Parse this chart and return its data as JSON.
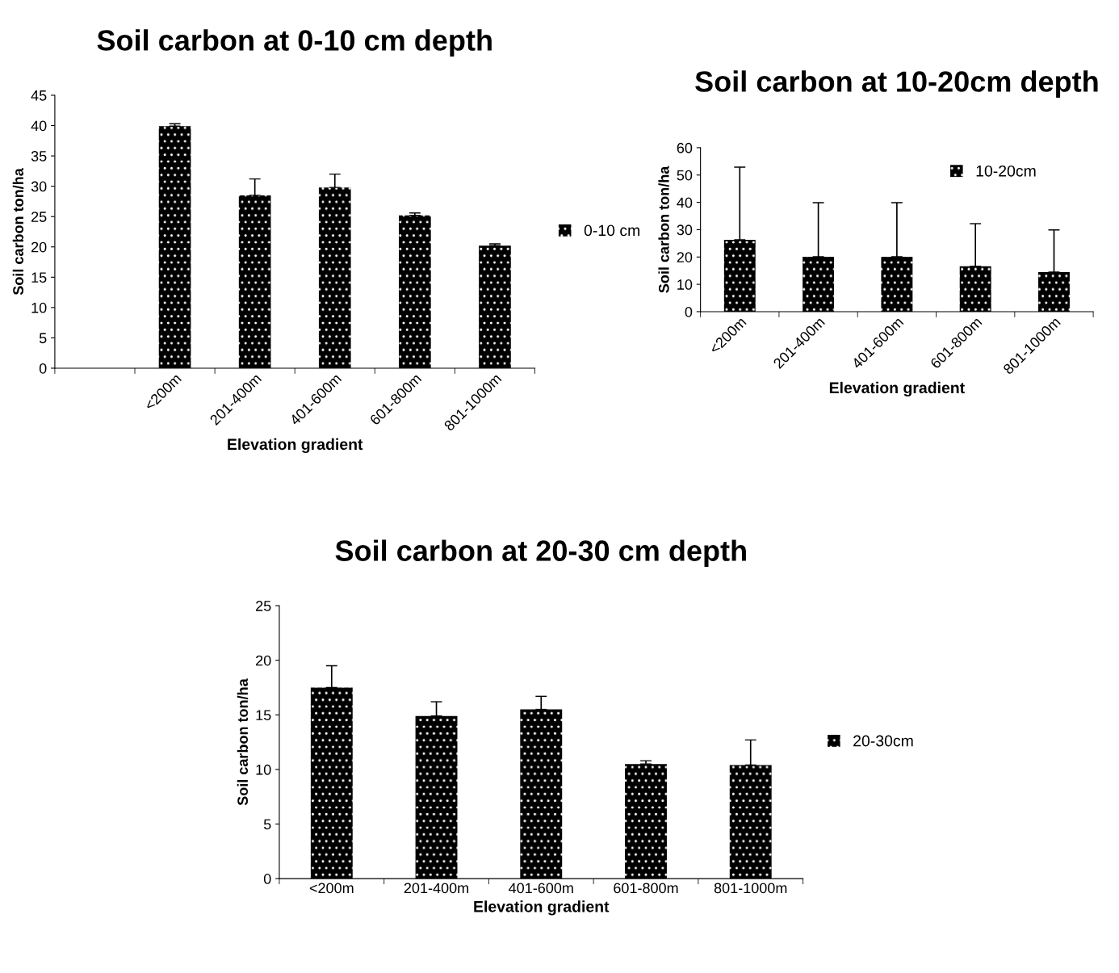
{
  "chart_data": [
    {
      "type": "bar",
      "title": "Soil carbon at 0-10 cm depth",
      "xlabel": "Elevation gradient",
      "ylabel": "Soil carbon ton/ha",
      "categories": [
        null,
        "<200m",
        "201-400m",
        "401-600m",
        "601-800m",
        "801-1000m"
      ],
      "series": [
        {
          "name": "0-10 cm",
          "color": "#000000",
          "values": [
            null,
            39.9,
            28.5,
            29.8,
            25.2,
            20.2
          ],
          "errors": [
            null,
            [
              39.9,
              40.3
            ],
            [
              28.5,
              31.2
            ],
            [
              29.8,
              32.0
            ],
            [
              25.2,
              25.6
            ],
            [
              20.2,
              20.5
            ]
          ]
        }
      ],
      "ylim": [
        0,
        45
      ],
      "yticks": [
        0,
        5,
        10,
        15,
        20,
        25,
        30,
        35,
        40,
        45
      ],
      "grid": false,
      "legend": "right"
    },
    {
      "type": "bar",
      "title": "Soil carbon at 10-20cm depth",
      "xlabel": "Elevation gradient",
      "ylabel": "Soil carbon ton/ha",
      "categories": [
        "<200m",
        "201-400m",
        "401-600m",
        "601-800m",
        "801-1000m"
      ],
      "series": [
        {
          "name": "10-20cm",
          "color": "#000000",
          "values": [
            26.3,
            20.1,
            20.1,
            16.6,
            14.5
          ],
          "errors": [
            [
              26.3,
              52.9
            ],
            [
              20.1,
              39.9
            ],
            [
              20.1,
              39.9
            ],
            [
              16.6,
              32.2
            ],
            [
              14.5,
              29.9
            ]
          ]
        }
      ],
      "ylim": [
        0,
        60
      ],
      "yticks": [
        0,
        10,
        20,
        30,
        40,
        50,
        60
      ],
      "grid": false,
      "legend": "top right"
    },
    {
      "type": "bar",
      "title": "Soil carbon at 20-30 cm depth",
      "xlabel": "Elevation gradient",
      "ylabel": "Soil carbon ton/ha",
      "categories": [
        "<200m",
        "201-400m",
        "401-600m",
        "601-800m",
        "801-1000m"
      ],
      "series": [
        {
          "name": "20-30cm",
          "color": "#000000",
          "values": [
            17.5,
            14.9,
            15.5,
            10.5,
            10.4
          ],
          "errors": [
            [
              17.5,
              19.5
            ],
            [
              14.9,
              16.2
            ],
            [
              15.5,
              16.7
            ],
            [
              10.5,
              10.8
            ],
            [
              10.4,
              12.7
            ]
          ]
        }
      ],
      "ylim": [
        0,
        25
      ],
      "yticks": [
        0,
        5,
        10,
        15,
        20,
        25
      ],
      "grid": false,
      "legend": "right"
    }
  ]
}
